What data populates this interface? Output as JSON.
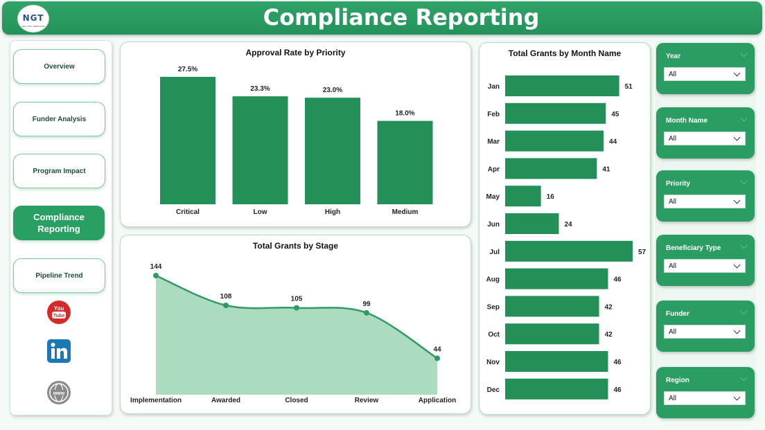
{
  "header": {
    "title": "Compliance Reporting",
    "logo_text": "NGT",
    "logo_subtext": "NEXT GEN TEMPLATES"
  },
  "nav": {
    "items": [
      {
        "label": "Overview",
        "active": false
      },
      {
        "label": "Funder Analysis",
        "active": false
      },
      {
        "label": "Program Impact",
        "active": false
      },
      {
        "label": "Compliance Reporting",
        "active": true
      },
      {
        "label": "Pipeline Trend",
        "active": false
      }
    ],
    "social_icons": [
      "youtube-icon",
      "linkedin-icon",
      "website-icon"
    ]
  },
  "colors": {
    "accent": "#2a9d63",
    "bar": "#239058",
    "area_fill": "#acdcc0",
    "line": "#2f9a63"
  },
  "slicers": [
    {
      "label": "Year",
      "value": "All"
    },
    {
      "label": "Month Name",
      "value": "All"
    },
    {
      "label": "Priority",
      "value": "All"
    },
    {
      "label": "Beneficiary Type",
      "value": "All"
    },
    {
      "label": "Funder",
      "value": "All"
    },
    {
      "label": "Region",
      "value": "All"
    }
  ],
  "chart_data": [
    {
      "type": "bar",
      "title": "Approval Rate by Priority",
      "categories": [
        "Critical",
        "Low",
        "High",
        "Medium"
      ],
      "values": [
        27.5,
        23.3,
        23.0,
        18.0
      ],
      "labels": [
        "27.5%",
        "23.3%",
        "23.0%",
        "18.0%"
      ],
      "ylim": [
        0,
        27.5
      ],
      "grid": false
    },
    {
      "type": "area",
      "title": "Total Grants by Stage",
      "categories": [
        "Implementation",
        "Awarded",
        "Closed",
        "Review",
        "Application"
      ],
      "values": [
        144,
        108,
        105,
        99,
        44
      ],
      "ylim": [
        0,
        144
      ],
      "grid": false
    },
    {
      "type": "bar",
      "orientation": "horizontal",
      "title": "Total Grants by Month Name",
      "categories": [
        "Jan",
        "Feb",
        "Mar",
        "Apr",
        "May",
        "Jun",
        "Jul",
        "Aug",
        "Sep",
        "Oct",
        "Nov",
        "Dec"
      ],
      "values": [
        51,
        45,
        44,
        41,
        16,
        24,
        57,
        46,
        42,
        42,
        46,
        46
      ],
      "xlim": [
        0,
        57
      ],
      "grid": false
    }
  ]
}
